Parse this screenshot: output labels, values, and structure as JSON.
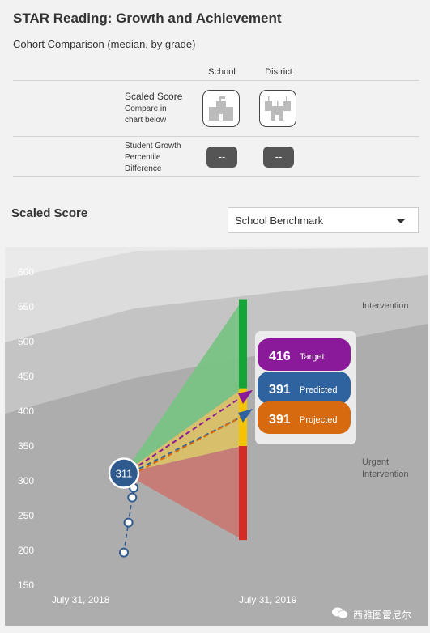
{
  "header": {
    "title": "STAR Reading: Growth and Achievement",
    "subtitle": "Cohort Comparison (median, by grade)"
  },
  "comparison": {
    "columns": [
      "School",
      "District"
    ],
    "rows": [
      {
        "label": "Scaled Score",
        "note_line1": "Compare in",
        "note_line2": "chart below"
      },
      {
        "label_line1": "Student Growth",
        "label_line2": "Percentile",
        "label_line3": "Difference",
        "values": [
          "--",
          "--"
        ]
      }
    ]
  },
  "section": {
    "title": "Scaled Score",
    "dropdown_selected": "School Benchmark"
  },
  "chart_data": {
    "type": "area",
    "x": [
      "July 31, 2018",
      "July 31, 2019"
    ],
    "y_ticks": [
      150,
      200,
      250,
      300,
      350,
      400,
      450,
      500,
      550,
      600
    ],
    "ylim": [
      130,
      625
    ],
    "zones": [
      "Intervention",
      "Urgent Intervention"
    ],
    "current_score": 311,
    "history_points": [
      197,
      240,
      276,
      290
    ],
    "bar_range": [
      215,
      561
    ],
    "bar_segments": [
      {
        "from": 215,
        "to": 350,
        "color": "#d42b27"
      },
      {
        "from": 350,
        "to": 433,
        "color": "#f4c400"
      },
      {
        "from": 433,
        "to": 561,
        "color": "#13a538"
      }
    ],
    "projections": [
      {
        "label": "Target",
        "value": 416,
        "color": "#8b1a9b"
      },
      {
        "label": "Predicted",
        "value": 391,
        "color": "#2f63a0"
      },
      {
        "label": "Projected",
        "value": 391,
        "color": "#d76a0e"
      }
    ]
  },
  "watermark": "西雅图雷尼尔"
}
